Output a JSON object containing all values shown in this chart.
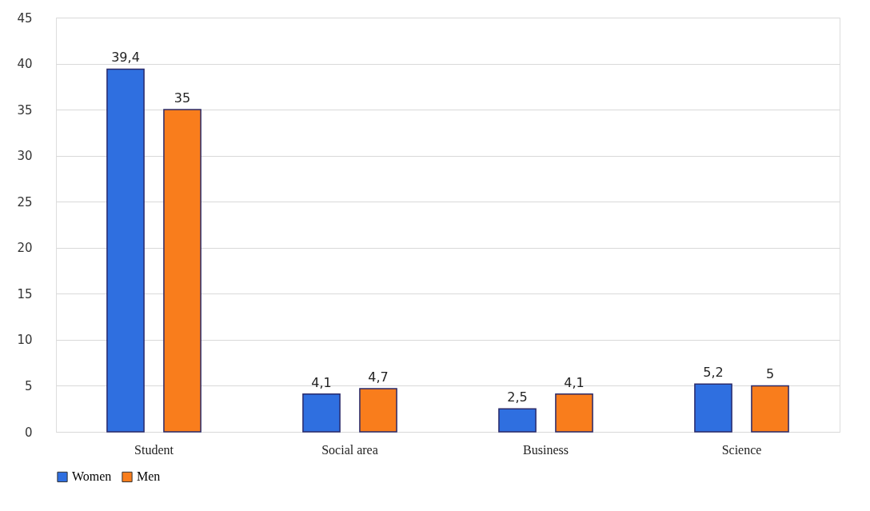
{
  "chart_data": {
    "type": "bar",
    "categories": [
      "Student",
      "Social area",
      "Business",
      "Science"
    ],
    "series": [
      {
        "name": "Women",
        "color": "#2f6fe0",
        "values": [
          39.4,
          4.1,
          2.5,
          5.2
        ],
        "value_labels": [
          "39,4",
          "4,1",
          "2,5",
          "5,2"
        ]
      },
      {
        "name": "Men",
        "color": "#f97d1c",
        "values": [
          35,
          4.7,
          4.1,
          5
        ],
        "value_labels": [
          "35",
          "4,7",
          "4,1",
          "5"
        ]
      }
    ],
    "ylim": [
      0,
      45
    ],
    "yticks": [
      0,
      5,
      10,
      15,
      20,
      25,
      30,
      35,
      40,
      45
    ],
    "grid": "y",
    "legend": "bottom"
  }
}
